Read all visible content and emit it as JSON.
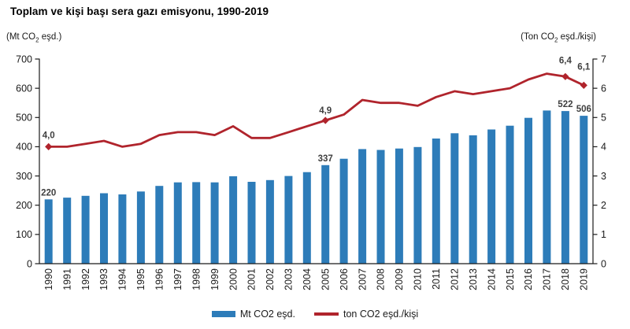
{
  "axis_units": {
    "left": {
      "pre": "(Mt CO",
      "sub": "2",
      "post": " eşd.)"
    },
    "right": {
      "pre": "(Ton CO",
      "sub": "2",
      "post": " eşd./kişi)"
    }
  },
  "legend": {
    "bars": "Mt CO2 eşd.",
    "line": "ton CO2 eşd./kişi"
  },
  "colors": {
    "bar": "#2D7CB9",
    "line": "#B0242C",
    "data_label": "#3F3F3F",
    "axis": "#1A1A1A"
  },
  "chart_data": {
    "type": "combo",
    "title": "Toplam ve kişi başı sera gazı emisyonu, 1990-2019",
    "categories": [
      "1990",
      "1991",
      "1992",
      "1993",
      "1994",
      "1995",
      "1996",
      "1997",
      "1998",
      "1999",
      "2000",
      "2001",
      "2002",
      "2003",
      "2004",
      "2005",
      "2006",
      "2007",
      "2008",
      "2009",
      "2010",
      "2011",
      "2012",
      "2013",
      "2014",
      "2015",
      "2016",
      "2017",
      "2018",
      "2019"
    ],
    "series": [
      {
        "name": "Mt CO2 eşd.",
        "type": "bar",
        "axis": "left",
        "color": "#2D7CB9",
        "values": [
          220,
          226,
          232,
          241,
          237,
          247,
          266,
          278,
          279,
          278,
          299,
          280,
          286,
          300,
          313,
          337,
          359,
          392,
          389,
          394,
          399,
          428,
          446,
          439,
          459,
          472,
          499,
          524,
          522,
          506
        ]
      },
      {
        "name": "ton CO2 eşd./kişi",
        "type": "line",
        "axis": "right",
        "color": "#B0242C",
        "marker": "diamond",
        "values": [
          4.0,
          4.0,
          4.1,
          4.2,
          4.0,
          4.1,
          4.4,
          4.5,
          4.5,
          4.4,
          4.7,
          4.3,
          4.3,
          4.5,
          4.7,
          4.9,
          5.1,
          5.6,
          5.5,
          5.5,
          5.4,
          5.7,
          5.9,
          5.8,
          5.9,
          6.0,
          6.3,
          6.5,
          6.4,
          6.1
        ]
      }
    ],
    "point_labels": {
      "bar": [
        {
          "category": "1990",
          "label": "220"
        },
        {
          "category": "2005",
          "label": "337"
        },
        {
          "category": "2018",
          "label": "522"
        },
        {
          "category": "2019",
          "label": "506"
        }
      ],
      "line": [
        {
          "category": "1990",
          "label": "4,0"
        },
        {
          "category": "2005",
          "label": "4,9"
        },
        {
          "category": "2018",
          "label": "6,4"
        },
        {
          "category": "2019",
          "label": "6,1"
        }
      ]
    },
    "left_axis": {
      "label": "(Mt CO2 eşd.)",
      "min": 0,
      "max": 700,
      "step": 100
    },
    "right_axis": {
      "label": "(Ton CO2 eşd./kişi)",
      "min": 0,
      "max": 7,
      "step": 1
    },
    "grid": false,
    "legend_position": "bottom"
  }
}
